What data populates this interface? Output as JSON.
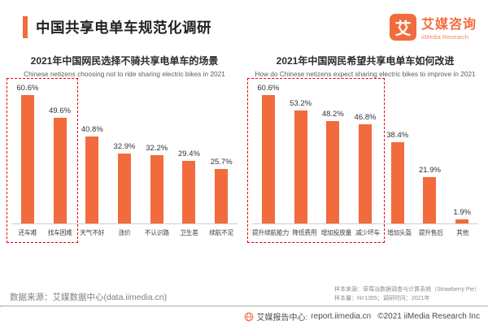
{
  "header": {
    "title": "中国共享电单车规范化调研",
    "accent_color": "#F26B3C"
  },
  "logo": {
    "mark": "艾",
    "name_cn": "艾媒咨询",
    "name_en": "iiMedia Research"
  },
  "chart_data": [
    {
      "type": "bar",
      "title": "2021年中国网民选择不骑共享电单车的场景",
      "subtitle": "Chinese netizens choosing not to ride sharing electric bikes in 2021",
      "categories": [
        "还车难",
        "找车困难",
        "天气不好",
        "涨价",
        "不认识路",
        "卫生差",
        "续航不足"
      ],
      "values": [
        60.6,
        49.6,
        40.8,
        32.9,
        32.2,
        29.4,
        25.7
      ],
      "unit": "%",
      "bar_color": "#F26B3C",
      "highlight_count": 2,
      "highlight_color": "#E60012",
      "ylim": [
        0,
        65
      ],
      "grid": false,
      "legend": false
    },
    {
      "type": "bar",
      "title": "2021年中国网民希望共享电单车如何改进",
      "subtitle": "How do Chinese netizens expect sharing electric bikes to improve in 2021",
      "categories": [
        "提升续航能力",
        "降低费用",
        "增加投放量",
        "减少坏车",
        "增加头盔",
        "提升售后",
        "其他"
      ],
      "values": [
        60.6,
        53.2,
        48.2,
        46.8,
        38.4,
        21.9,
        1.9
      ],
      "unit": "%",
      "bar_color": "#F26B3C",
      "highlight_count": 4,
      "highlight_color": "#E60012",
      "ylim": [
        0,
        65
      ],
      "grid": false,
      "legend": false
    }
  ],
  "footnotes": {
    "data_source": "数据来源：艾媒数据中心(data.iimedia.cn)",
    "sample_source": "样本来源：草莓派数据调查与计算系统（Strawberry Pie）",
    "sample_info": "样本量：N=1355；调研时间：2021年"
  },
  "footer": {
    "brand": "艾媒报告中心:",
    "url": "report.iimedia.cn",
    "copyright": "©2021  iiMedia Research  Inc"
  }
}
